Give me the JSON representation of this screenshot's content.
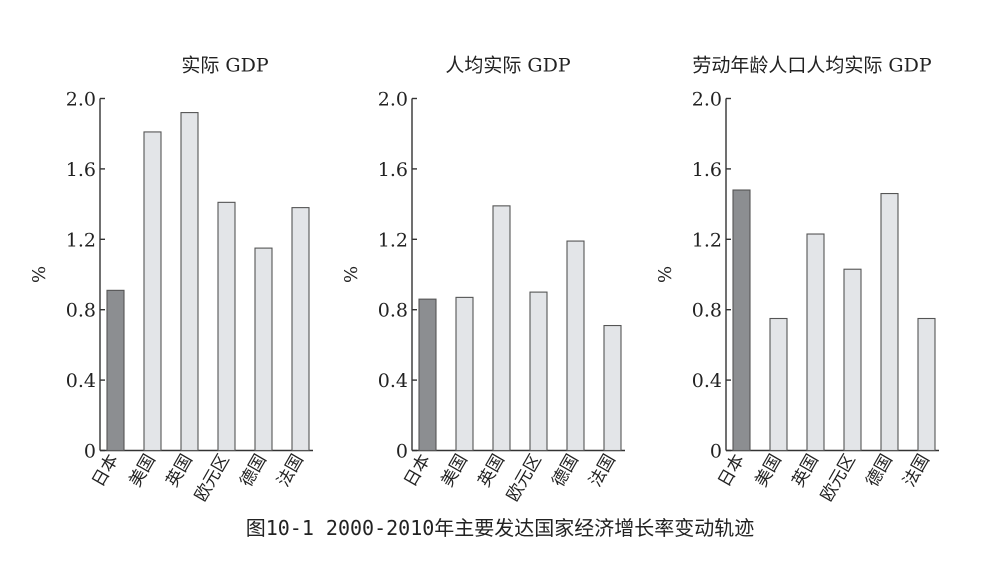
{
  "caption": "图10-1 2000-2010年主要发达国家经济增长率变动轨迹",
  "colors": {
    "highlight": "#8c8e91",
    "normal": "#e3e5e8",
    "stroke": "#555555",
    "axis": "#333333"
  },
  "chart_data": [
    {
      "type": "bar",
      "title": "实际 GDP",
      "ylabel": "%",
      "xlabel": "",
      "categories": [
        "日本",
        "美国",
        "英国",
        "欧元区",
        "德国",
        "法国"
      ],
      "values": [
        0.91,
        1.81,
        1.92,
        1.41,
        1.15,
        1.38
      ],
      "highlight_index": 0,
      "ylim": [
        0,
        2.0
      ],
      "yticks": [
        "0",
        "0.4",
        "0.8",
        "1.2",
        "1.6",
        "2.0"
      ],
      "grid": false
    },
    {
      "type": "bar",
      "title": "人均实际 GDP",
      "ylabel": "%",
      "xlabel": "",
      "categories": [
        "日本",
        "美国",
        "英国",
        "欧元区",
        "德国",
        "法国"
      ],
      "values": [
        0.86,
        0.87,
        1.39,
        0.9,
        1.19,
        0.71
      ],
      "highlight_index": 0,
      "ylim": [
        0,
        2.0
      ],
      "yticks": [
        "0",
        "0.4",
        "0.8",
        "1.2",
        "1.6",
        "2.0"
      ],
      "grid": false
    },
    {
      "type": "bar",
      "title": "劳动年龄人口人均实际 GDP",
      "ylabel": "%",
      "xlabel": "",
      "categories": [
        "日本",
        "美国",
        "英国",
        "欧元区",
        "德国",
        "法国"
      ],
      "values": [
        1.48,
        0.75,
        1.23,
        1.03,
        1.46,
        0.75
      ],
      "highlight_index": 0,
      "ylim": [
        0,
        2.0
      ],
      "yticks": [
        "0",
        "0.4",
        "0.8",
        "1.2",
        "1.6",
        "2.0"
      ],
      "grid": false
    }
  ]
}
